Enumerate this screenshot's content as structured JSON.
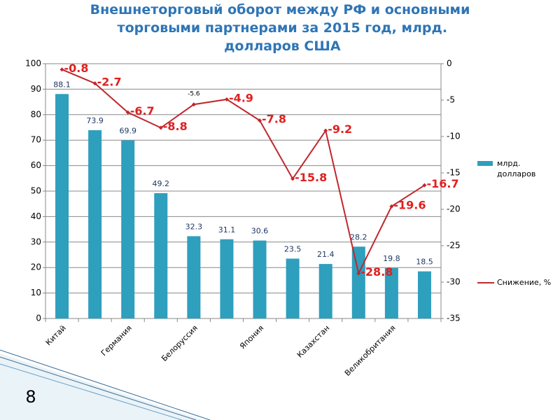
{
  "chart_data": {
    "type": "bar_line",
    "title": "Внешнеторговый оборот между РФ и основными торговыми партнерами за 2015 год, млрд. долларов США",
    "categories": [
      "Китай",
      null,
      "Германия",
      null,
      "Белоруссия",
      null,
      "Япония",
      null,
      "Казахстан",
      null,
      "Великобритания",
      null
    ],
    "series": [
      {
        "name": "млрд. долларов",
        "type": "bar",
        "color": "#2e9fbd",
        "values": [
          88.1,
          73.9,
          69.9,
          49.2,
          32.3,
          31.1,
          30.6,
          23.5,
          21.4,
          28.2,
          19.8,
          18.5
        ]
      },
      {
        "name": "Снижение, %",
        "type": "line",
        "axis": "y2",
        "color": "#c0272d",
        "values": [
          -0.8,
          -2.7,
          -6.7,
          -8.8,
          -5.6,
          -4.9,
          -7.8,
          -15.8,
          -9.2,
          -28.8,
          -19.6,
          -16.7
        ]
      }
    ],
    "ylim": [
      0,
      100
    ],
    "yticks": [
      0,
      10,
      20,
      30,
      40,
      50,
      60,
      70,
      80,
      90,
      100
    ],
    "y2lim": [
      -35,
      0
    ],
    "y2ticks": [
      -35,
      -30,
      -25,
      -20,
      -15,
      -10,
      -5,
      0
    ],
    "grid": true,
    "legend": "right"
  },
  "page_number": 8
}
